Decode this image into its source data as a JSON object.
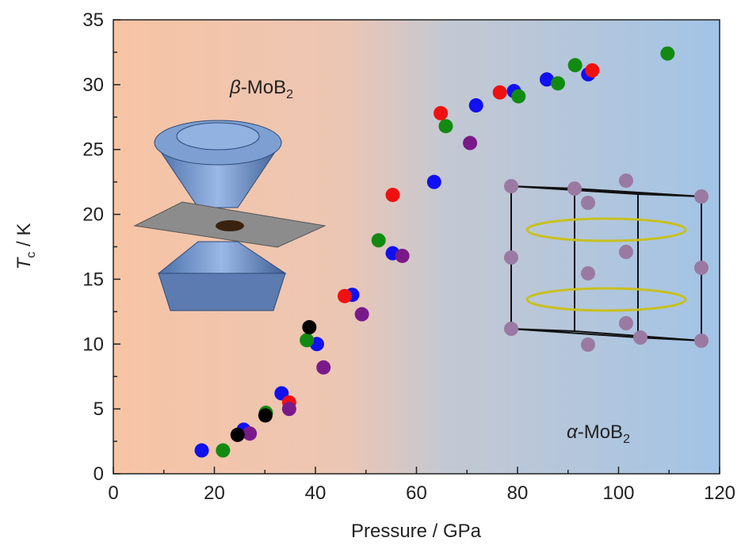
{
  "chart_data": {
    "type": "scatter",
    "x_label": "Pressure / GPa",
    "y_label": {
      "italic": "T",
      "sub": "c",
      "rest": " / K"
    },
    "annotations": [
      {
        "italic": "β",
        "text": "-MoB",
        "sub": "2"
      },
      {
        "italic": "α",
        "text": "-MoB",
        "sub": "2"
      }
    ],
    "xlim": [
      0,
      120
    ],
    "xticks": [
      0,
      20,
      40,
      60,
      80,
      100,
      120
    ],
    "xminorticks": [
      10,
      30,
      50,
      70,
      90,
      110
    ],
    "ylim": [
      0,
      35
    ],
    "yticks": [
      0,
      5,
      10,
      15,
      20,
      25,
      30,
      35
    ],
    "yminorticks": [
      2.5,
      7.5,
      12.5,
      17.5,
      22.5,
      27.5,
      32.5
    ],
    "series": [
      {
        "color": "#1010f0",
        "x": [
          17.5,
          25.8,
          33.3,
          40.3,
          47.3,
          55.3,
          63.5,
          71.8,
          79.3,
          85.8,
          94.0
        ],
        "values": [
          1.8,
          3.4,
          6.2,
          10.0,
          13.8,
          17.0,
          22.5,
          28.4,
          29.5,
          30.4,
          30.8
        ]
      },
      {
        "color": "#128a12",
        "x": [
          21.7,
          30.2,
          38.3,
          52.5,
          65.8,
          80.2,
          88.0,
          91.4,
          109.7
        ],
        "values": [
          1.8,
          4.7,
          10.3,
          18.0,
          26.8,
          29.1,
          30.1,
          31.5,
          32.4
        ]
      },
      {
        "color": "#f01010",
        "x": [
          34.8,
          45.8,
          55.3,
          64.8,
          76.5,
          94.8
        ],
        "values": [
          5.5,
          13.7,
          21.5,
          27.8,
          29.4,
          31.1
        ]
      },
      {
        "color": "#7a1a8a",
        "x": [
          27.0,
          34.8,
          41.6,
          49.2,
          57.2,
          70.6
        ],
        "values": [
          3.1,
          5.0,
          8.2,
          12.3,
          16.8,
          25.5
        ]
      },
      {
        "color": "#000000",
        "x": [
          24.6,
          30.1,
          38.8
        ],
        "values": [
          3.0,
          4.5,
          11.3
        ]
      }
    ]
  }
}
